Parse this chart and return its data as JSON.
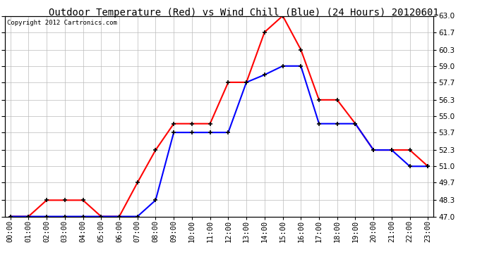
{
  "title": "Outdoor Temperature (Red) vs Wind Chill (Blue) (24 Hours) 20120601",
  "copyright_text": "Copyright 2012 Cartronics.com",
  "x_labels": [
    "00:00",
    "01:00",
    "02:00",
    "03:00",
    "04:00",
    "05:00",
    "06:00",
    "07:00",
    "08:00",
    "09:00",
    "10:00",
    "11:00",
    "12:00",
    "13:00",
    "14:00",
    "15:00",
    "16:00",
    "17:00",
    "18:00",
    "19:00",
    "20:00",
    "21:00",
    "22:00",
    "23:00"
  ],
  "red_data": [
    47.0,
    47.0,
    48.3,
    48.3,
    48.3,
    47.0,
    47.0,
    49.7,
    52.3,
    54.4,
    54.4,
    54.4,
    57.7,
    57.7,
    61.7,
    63.0,
    60.3,
    56.3,
    56.3,
    54.4,
    52.3,
    52.3,
    52.3,
    51.0
  ],
  "blue_data": [
    47.0,
    47.0,
    47.0,
    47.0,
    47.0,
    47.0,
    47.0,
    47.0,
    48.3,
    53.7,
    53.7,
    53.7,
    53.7,
    57.7,
    58.3,
    59.0,
    59.0,
    54.4,
    54.4,
    54.4,
    52.3,
    52.3,
    51.0,
    51.0
  ],
  "ylim": [
    47.0,
    63.0
  ],
  "yticks": [
    47.0,
    48.3,
    49.7,
    51.0,
    52.3,
    53.7,
    55.0,
    56.3,
    57.7,
    59.0,
    60.3,
    61.7,
    63.0
  ],
  "red_color": "red",
  "blue_color": "blue",
  "marker": "+",
  "marker_color": "black",
  "grid_color": "#bbbbbb",
  "bg_color": "white",
  "title_fontsize": 10,
  "copyright_fontsize": 6.5,
  "tick_fontsize": 7.5,
  "linewidth": 1.5,
  "markersize": 5
}
